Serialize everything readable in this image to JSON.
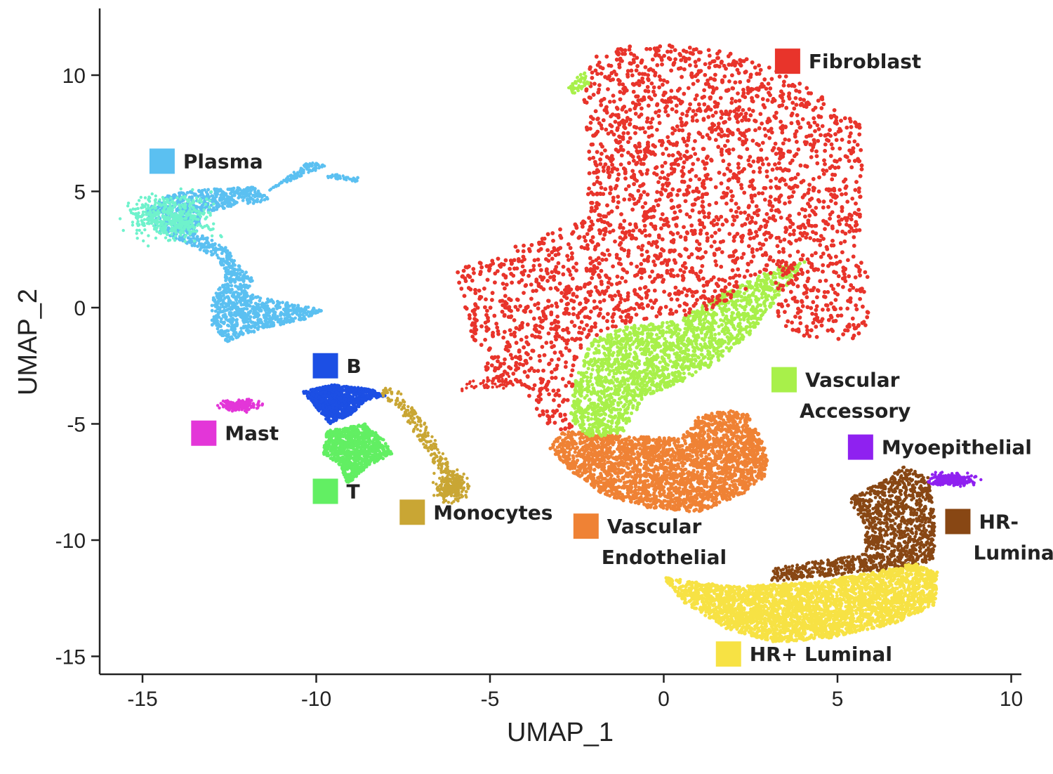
{
  "chart_data": {
    "type": "scatter",
    "xlabel": "UMAP_1",
    "ylabel": "UMAP_2",
    "xlim": [
      -16.2,
      10.4
    ],
    "ylim": [
      -15.6,
      12.9
    ],
    "xticks": [
      -15,
      -10,
      -5,
      0,
      5,
      10
    ],
    "yticks": [
      10,
      5,
      0,
      -5,
      -10,
      -15
    ],
    "grid": false,
    "legend": "inline labels next to clusters",
    "clusters": [
      {
        "name": "Fibroblast",
        "color": "#e8342b",
        "label_pos": [
          3.2,
          10.6
        ],
        "label_lines": [
          "Fibroblast"
        ]
      },
      {
        "name": "Plasma",
        "color": "#5bc0f1",
        "label_pos": [
          -14.8,
          6.3
        ],
        "label_lines": [
          "Plasma"
        ]
      },
      {
        "name": "B",
        "color": "#1c4fe4",
        "label_pos": [
          -10.1,
          -2.5
        ],
        "label_lines": [
          "B"
        ]
      },
      {
        "name": "Mast",
        "color": "#e336d8",
        "label_pos": [
          -13.6,
          -5.4
        ],
        "label_lines": [
          "Mast"
        ]
      },
      {
        "name": "T",
        "color": "#62ef63",
        "label_pos": [
          -10.1,
          -7.9
        ],
        "label_lines": [
          "T"
        ]
      },
      {
        "name": "Monocytes",
        "color": "#c9a634",
        "label_pos": [
          -7.6,
          -8.8
        ],
        "label_lines": [
          "Monocytes"
        ]
      },
      {
        "name": "Vascular Accessory",
        "color": "#a8f04a",
        "label_pos": [
          3.1,
          -3.1
        ],
        "label_lines": [
          "Vascular",
          "Accessory"
        ]
      },
      {
        "name": "Vascular Endothelial",
        "color": "#ef8235",
        "label_pos": [
          -2.6,
          -9.4
        ],
        "label_lines": [
          "Vascular",
          "Endothelial"
        ]
      },
      {
        "name": "Myoepithelial",
        "color": "#8f21f0",
        "label_pos": [
          5.3,
          -6.0
        ],
        "label_lines": [
          "Myoepithelial"
        ]
      },
      {
        "name": "HR- Luminal",
        "color": "#884714",
        "label_pos": [
          8.1,
          -9.2
        ],
        "label_lines": [
          "HR-",
          "Luminal"
        ]
      },
      {
        "name": "HR+ Luminal",
        "color": "#f7e244",
        "label_pos": [
          1.5,
          -14.9
        ],
        "label_lines": [
          "HR+ Luminal"
        ]
      }
    ]
  }
}
